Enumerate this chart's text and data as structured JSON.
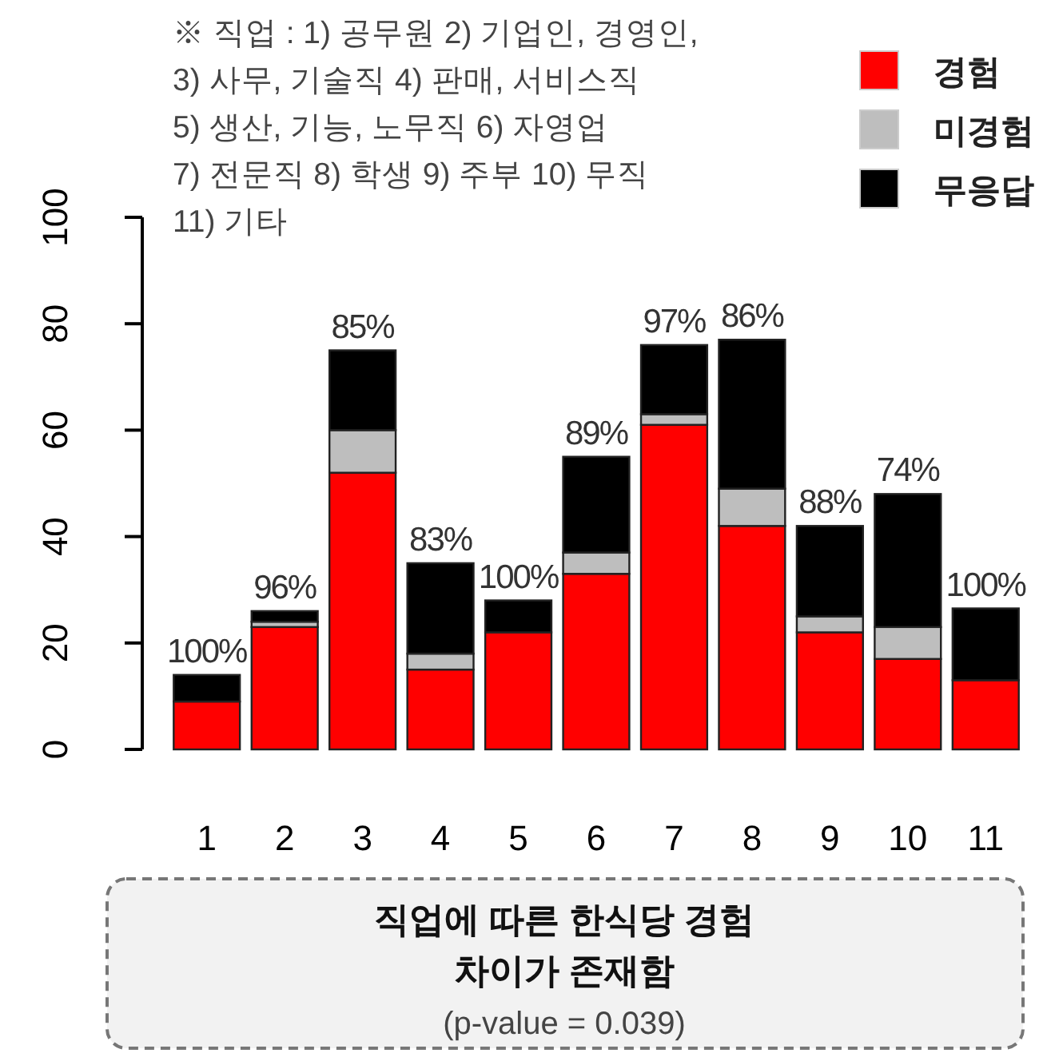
{
  "chart_data": {
    "type": "bar",
    "stacked": true,
    "categories": [
      "1",
      "2",
      "3",
      "4",
      "5",
      "6",
      "7",
      "8",
      "9",
      "10",
      "11"
    ],
    "series": [
      {
        "name": "경험",
        "color": "#ff0000",
        "values": [
          9,
          23,
          52,
          15,
          22,
          33,
          61,
          42,
          22,
          17,
          13
        ]
      },
      {
        "name": "미경험",
        "color": "#bebebe",
        "values": [
          0,
          1,
          8,
          3,
          0,
          4,
          2,
          7,
          3,
          6,
          0
        ]
      },
      {
        "name": "무응답",
        "color": "#000000",
        "values": [
          5,
          2,
          15,
          17,
          6,
          18,
          13,
          28,
          17,
          25,
          13.5
        ]
      }
    ],
    "ylim": [
      0,
      100
    ],
    "yticks": [
      0,
      20,
      40,
      60,
      80,
      100
    ],
    "grid": false,
    "legend": "top right",
    "annotations": [
      "※ 직업 : 1) 공무원 2) 기업인, 경영인,\n3) 사무, 기술직 4) 판매, 서비스직\n5) 생산, 기능, 노무직 6) 자영업\n7) 전문직 8) 학생 9) 주부 10) 무직\n11) 기타",
      "직업에 따른 한식당 경험\n차이가 존재함\n(p-value = 0.039)",
      {
        "text": "100%",
        "x": "1",
        "y": 14
      },
      {
        "text": "96%",
        "x": "2",
        "y": 26
      },
      {
        "text": "85%",
        "x": "3",
        "y": 75
      },
      {
        "text": "83%",
        "x": "4",
        "y": 35
      },
      {
        "text": "100%",
        "x": "5",
        "y": 28
      },
      {
        "text": "89%",
        "x": "6",
        "y": 55
      },
      {
        "text": "97%",
        "x": "7",
        "y": 76
      },
      {
        "text": "86%",
        "x": "8",
        "y": 77
      },
      {
        "text": "88%",
        "x": "9",
        "y": 42
      },
      {
        "text": "74%",
        "x": "10",
        "y": 48
      },
      {
        "text": "100%",
        "x": "11",
        "y": 26.5
      }
    ]
  }
}
